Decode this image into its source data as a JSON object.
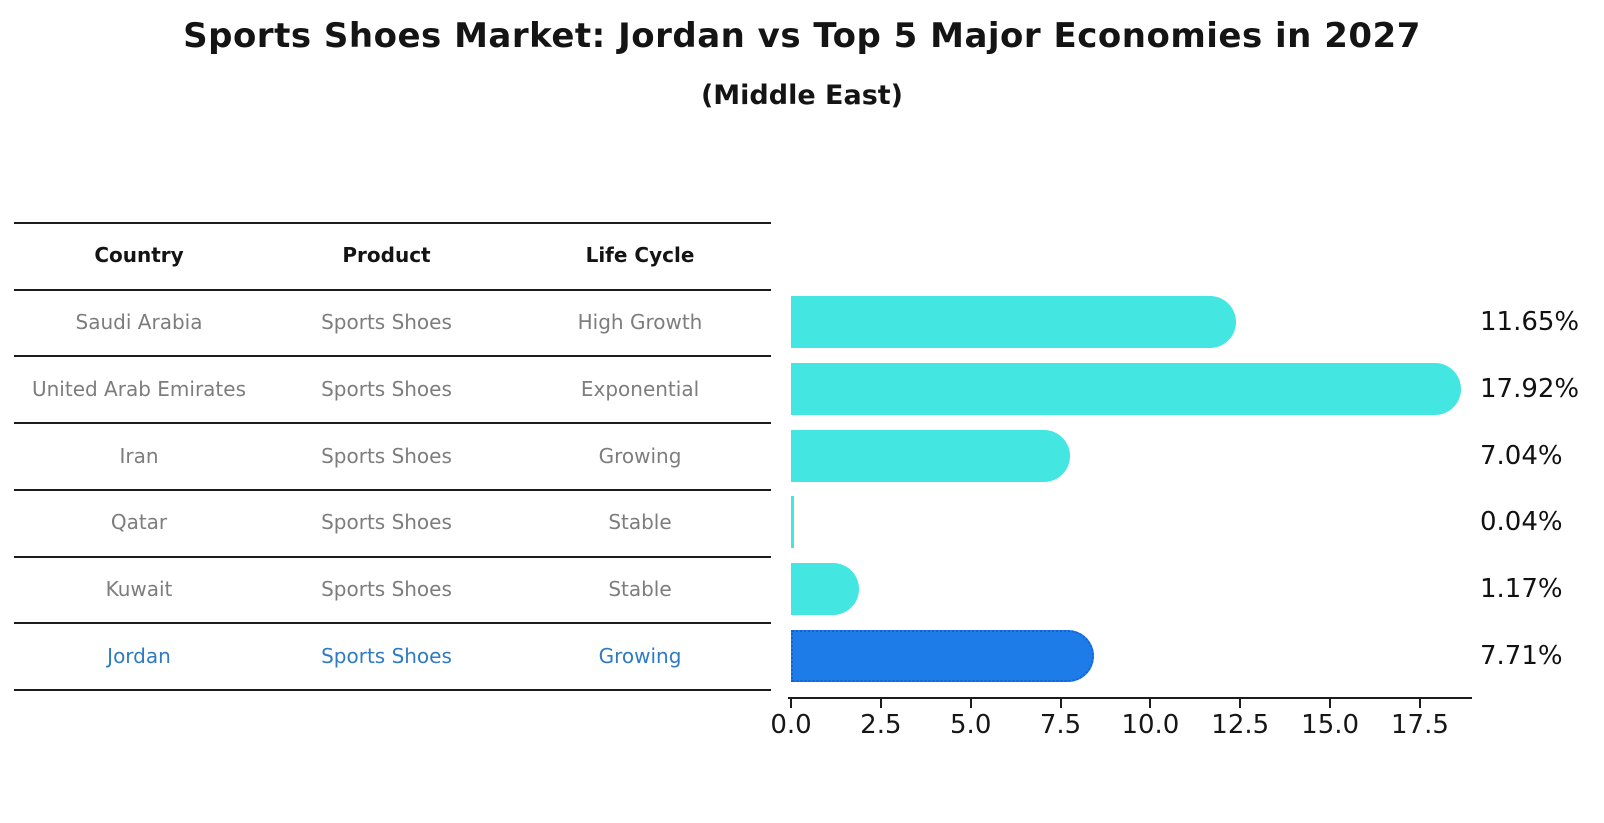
{
  "title": "Sports Shoes Market: Jordan vs Top 5 Major Economies in 2027",
  "subtitle": "(Middle East)",
  "table": {
    "columns": [
      "Country",
      "Product",
      "Life Cycle"
    ],
    "rows": [
      [
        "Saudi Arabia",
        "Sports Shoes",
        "High Growth"
      ],
      [
        "United Arab Emirates",
        "Sports Shoes",
        "Exponential"
      ],
      [
        "Iran",
        "Sports Shoes",
        "Growing"
      ],
      [
        "Qatar",
        "Sports Shoes",
        "Stable"
      ],
      [
        "Kuwait",
        "Sports Shoes",
        "Stable"
      ],
      [
        "Jordan",
        "Sports Shoes",
        "Growing"
      ]
    ],
    "highlighted_country": "Jordan"
  },
  "chart_data": {
    "type": "bar",
    "orientation": "horizontal",
    "title": "Sports Shoes Market: Jordan vs Top 5 Major Economies in 2027",
    "subtitle": "(Middle East)",
    "categories": [
      "Saudi Arabia",
      "United Arab Emirates",
      "Iran",
      "Qatar",
      "Kuwait",
      "Jordan"
    ],
    "values": [
      11.65,
      17.92,
      7.04,
      0.04,
      1.17,
      7.71
    ],
    "value_labels": [
      "11.65%",
      "17.92%",
      "7.04%",
      "0.04%",
      "1.17%",
      "7.71%"
    ],
    "x_ticks": [
      0.0,
      2.5,
      5.0,
      7.5,
      10.0,
      12.5,
      15.0,
      17.5
    ],
    "x_tick_labels": [
      "0.0",
      "2.5",
      "5.0",
      "7.5",
      "10.0",
      "12.5",
      "15.0",
      "17.5"
    ],
    "xlim": [
      0,
      18.9
    ],
    "grid": false,
    "legend_position": "none",
    "bar_color": "#43E6E1",
    "highlight_bar_color": "#1E7CE8",
    "highlight_index": 5,
    "highlight_edge_style": "dotted",
    "unit": "%"
  },
  "colors": {
    "background": "#ffffff",
    "bar": "#43E6E1",
    "highlight_bar": "#1E7CE8",
    "highlight_text": "#2F7BC3",
    "row_text": "#7d7d7d",
    "header_text": "#141414",
    "line": "#1c1c1c"
  }
}
